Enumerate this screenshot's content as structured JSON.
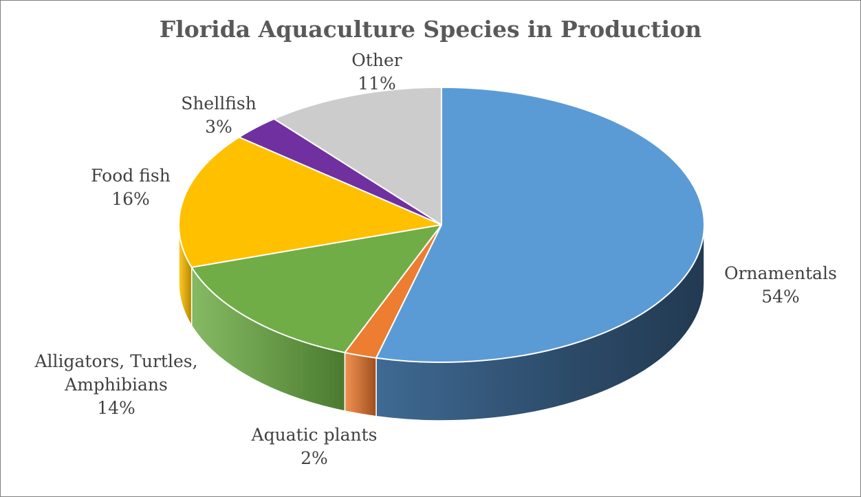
{
  "chart_data": {
    "type": "pie",
    "title": "Florida Aquaculture Species in Production",
    "slices": [
      {
        "name": "Ornamentals",
        "label_lines": [
          "Ornamentals",
          "54%"
        ],
        "value": 54,
        "color": "#5b9bd5",
        "side_color": "#2e4d6c"
      },
      {
        "name": "Aquatic plants",
        "label_lines": [
          "Aquatic plants",
          "2%"
        ],
        "value": 2,
        "color": "#ed7d31",
        "side_color": "#9c4f1f"
      },
      {
        "name": "Alligators, Turtles, Amphibians",
        "label_lines": [
          "Alligators, Turtles,",
          "Amphibians",
          "14%"
        ],
        "value": 14,
        "color": "#70ad47",
        "side_color": "#4a7a2f"
      },
      {
        "name": "Food fish",
        "label_lines": [
          "Food fish",
          "16%"
        ],
        "value": 16,
        "color": "#ffc000",
        "side_color": "#b38600"
      },
      {
        "name": "Shellfish",
        "label_lines": [
          "Shellfish",
          "3%"
        ],
        "value": 3,
        "color": "#7030a0",
        "side_color": "#4a1f6b"
      },
      {
        "name": "Other",
        "label_lines": [
          "Other",
          "11%"
        ],
        "value": 11,
        "color": "#cccccc",
        "side_color": "#8a8a8a"
      }
    ],
    "start_angle": "12 o'clock",
    "direction": "clockwise",
    "style": "3D pie",
    "legend": "none",
    "data_labels": "category name and percentage outside slices"
  }
}
